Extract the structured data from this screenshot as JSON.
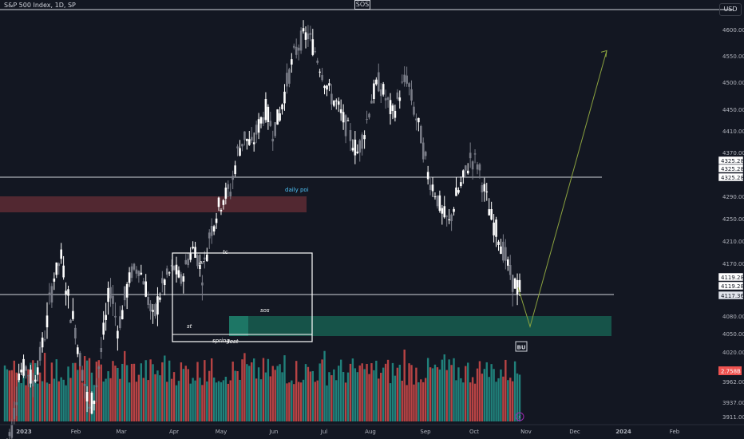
{
  "header": {
    "symbol_title": "S&P 500 Index, 1D, SP",
    "center_tag": "SOS",
    "currency_button": "USD"
  },
  "chart_data": {
    "type": "candlestick",
    "title": "S&P 500 Index, 1D, SP",
    "y_axis": {
      "ticks": [
        4600,
        4550,
        4500,
        4450,
        4410,
        4370,
        4325.28,
        4290,
        4250,
        4210,
        4170,
        4119.28,
        4080,
        4050,
        4020,
        3962,
        3937,
        3911
      ],
      "tick_labels": [
        "4600.00",
        "4550.00",
        "4500.00",
        "4450.00",
        "4410.00",
        "4370.00",
        "4325.28",
        "4290.00",
        "4250.00",
        "4210.00",
        "4170.00",
        "4119.28",
        "4080.00",
        "4050.00",
        "4020.00",
        "3962.00",
        "3937.00",
        "3911.00"
      ]
    },
    "x_axis": {
      "ticks": [
        "2023",
        "Feb",
        "Mar",
        "Apr",
        "May",
        "Jun",
        "Jul",
        "Aug",
        "Sep",
        "Oct",
        "Nov",
        "Dec",
        "2024",
        "Feb"
      ]
    },
    "price_labels": [
      {
        "value": 4325.28,
        "text": "4325.28"
      },
      {
        "value": 4325.28,
        "text": "4325.28"
      },
      {
        "value": 4325.28,
        "text": "4325.28"
      },
      {
        "value": 4119.28,
        "text": "4119.28"
      },
      {
        "value": 4119.28,
        "text": "4119.28"
      },
      {
        "value": 4117.36,
        "text": "4117.36",
        "current": true
      }
    ],
    "volume_label": "2.758B",
    "horizontal_levels": [
      4325.28,
      4117.36
    ],
    "zones": [
      {
        "name": "supply-zone",
        "from_month": "2023",
        "to_month": "Jun",
        "low": 4262,
        "high": 4290,
        "color": "#5a2a33"
      },
      {
        "name": "demand-zone",
        "from_month": "May",
        "to_month": "Nov",
        "low": 4048,
        "high": 4080,
        "color": "#175a4e"
      }
    ],
    "annotations": [
      "daily poi",
      "ar",
      "tc",
      "st",
      "sos",
      "spring",
      "test",
      "BU"
    ],
    "projection": {
      "points": [
        [
          "Oct",
          4117
        ],
        [
          "Nov",
          4062
        ],
        [
          "Dec",
          4560
        ]
      ],
      "color": "#8ba23f"
    },
    "approx_daily_close_path": [
      3860,
      3890,
      3980,
      3990,
      3960,
      4010,
      4070,
      4140,
      4180,
      4100,
      4060,
      3980,
      3920,
      3960,
      4050,
      4120,
      4060,
      4100,
      4150,
      4160,
      4120,
      4070,
      4110,
      4140,
      4160,
      4130,
      4180,
      4200,
      4140,
      4220,
      4260,
      4290,
      4300,
      4370,
      4400,
      4380,
      4420,
      4450,
      4410,
      4440,
      4500,
      4550,
      4580,
      4590,
      4560,
      4520,
      4480,
      4460,
      4430,
      4400,
      4370,
      4410,
      4470,
      4500,
      4470,
      4440,
      4480,
      4510,
      4450,
      4400,
      4330,
      4300,
      4260,
      4240,
      4290,
      4320,
      4360,
      4350,
      4300,
      4250,
      4220,
      4180,
      4130,
      4117
    ]
  },
  "colors": {
    "background": "#131722",
    "up_candle": "#ffffff",
    "down_candle": "#787b86",
    "volume_up": "#26a69a",
    "volume_down": "#ef5350",
    "current_price_label": "#ef5350"
  }
}
